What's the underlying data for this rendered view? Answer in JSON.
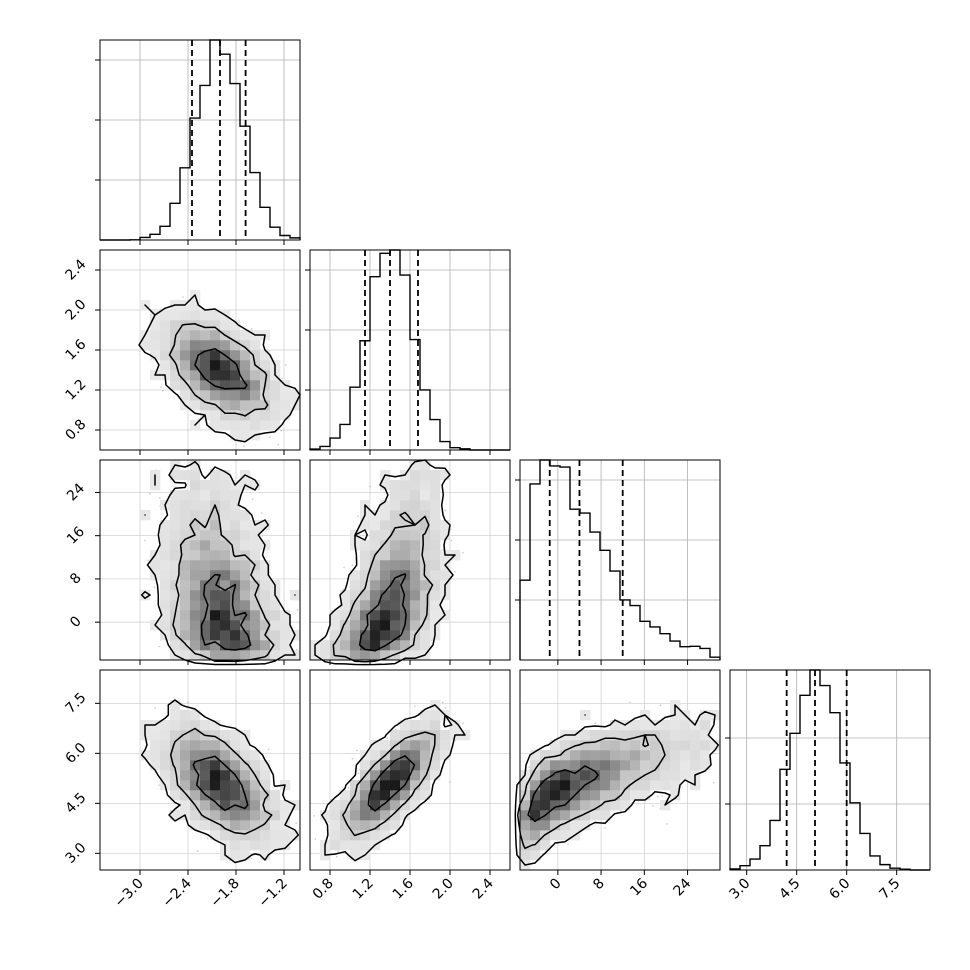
{
  "chart_data": {
    "type": "corner",
    "parameters": [
      {
        "range": [
          -3.5,
          -1.0
        ],
        "ticks": [
          "−3.0",
          "−2.4",
          "−1.8",
          "−1.2"
        ],
        "tick_values": [
          -3.0,
          -2.4,
          -1.8,
          -1.2
        ],
        "mean": -2.0,
        "sd": 0.3,
        "quantiles": [
          -2.35,
          -2.0,
          -1.68
        ]
      },
      {
        "range": [
          0.6,
          2.6
        ],
        "ticks": [
          "0.8",
          "1.2",
          "1.6",
          "2.0",
          "2.4"
        ],
        "tick_values": [
          0.8,
          1.2,
          1.6,
          2.0,
          2.4
        ],
        "mean": 1.4,
        "sd": 0.22,
        "quantiles": [
          1.15,
          1.4,
          1.68
        ]
      },
      {
        "range": [
          -7,
          30
        ],
        "ticks": [
          "0",
          "8",
          "16",
          "24"
        ],
        "tick_values": [
          0,
          8,
          16,
          24
        ],
        "mean": 4.5,
        "sd": 7.5,
        "quantiles": [
          -1.5,
          4.0,
          12.0
        ]
      },
      {
        "range": [
          2.5,
          8.5
        ],
        "ticks": [
          "3.0",
          "4.5",
          "6.0",
          "7.5"
        ],
        "tick_values": [
          3.0,
          4.5,
          6.0,
          7.5
        ],
        "mean": 5.1,
        "sd": 0.75,
        "quantiles": [
          4.2,
          5.05,
          6.0
        ]
      }
    ],
    "correlations": [
      {
        "pair": [
          0,
          1
        ],
        "rho": -0.5
      },
      {
        "pair": [
          0,
          2
        ],
        "rho": -0.3
      },
      {
        "pair": [
          1,
          2
        ],
        "rho": 0.55
      },
      {
        "pair": [
          0,
          3
        ],
        "rho": -0.55
      },
      {
        "pair": [
          1,
          3
        ],
        "rho": 0.75
      },
      {
        "pair": [
          2,
          3
        ],
        "rho": 0.7
      }
    ],
    "histogram_bins": 20,
    "density_bins": 20,
    "contour_levels": [
      0.39,
      0.86,
      0.99
    ],
    "quantile_style": "dashed",
    "grid": true,
    "samples": 5000
  }
}
